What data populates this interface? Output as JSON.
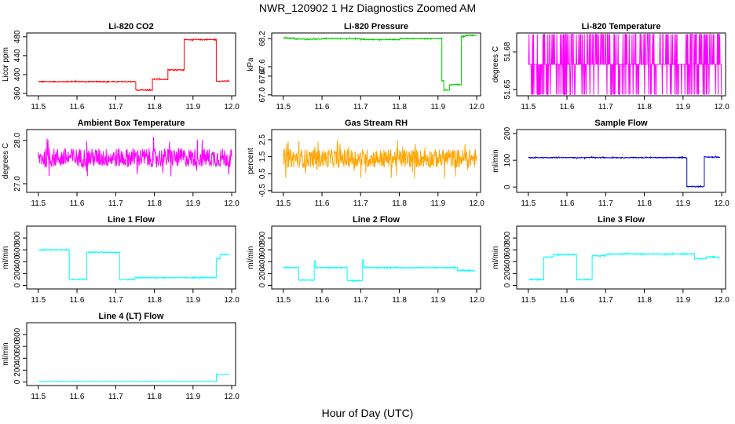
{
  "figure": {
    "title": "NWR_120902  1 Hz Diagnostics Zoomed AM",
    "xlabel": "Hour of Day (UTC)"
  },
  "chart_data": [
    {
      "type": "line",
      "title": "Li-820 CO2",
      "ylabel": "Licor ppm",
      "color": "#ff0000",
      "xlim": [
        11.47,
        12.01
      ],
      "ylim": [
        355,
        488
      ],
      "xticks": [
        "11.5",
        "11.6",
        "11.7",
        "11.8",
        "11.9",
        "12.0"
      ],
      "xtick_values": [
        11.5,
        11.6,
        11.7,
        11.8,
        11.9,
        12.0
      ],
      "yticks": [
        "360",
        "400",
        "440",
        "480"
      ],
      "ytick_values": [
        360,
        400,
        440,
        480
      ],
      "noise": 1.0,
      "segments": [
        [
          11.5,
          11.752,
          385
        ],
        [
          11.752,
          11.795,
          367
        ],
        [
          11.795,
          11.835,
          390
        ],
        [
          11.835,
          11.877,
          410
        ],
        [
          11.877,
          11.96,
          474
        ],
        [
          11.96,
          11.995,
          386
        ]
      ]
    },
    {
      "type": "line",
      "title": "Li-820 Pressure",
      "ylabel": "kPa",
      "color": "#00cc00",
      "xlim": [
        11.47,
        12.01
      ],
      "ylim": [
        66.98,
        68.32
      ],
      "xticks": [
        "11.5",
        "11.6",
        "11.7",
        "11.8",
        "11.9",
        "12.0"
      ],
      "xtick_values": [
        11.5,
        11.6,
        11.7,
        11.8,
        11.9,
        12.0
      ],
      "yticks": [
        "67.0",
        "67.4",
        "67.6",
        "68.2"
      ],
      "ytick_values": [
        67.0,
        67.4,
        67.6,
        68.2
      ],
      "noise": 0.01,
      "segments": [
        [
          11.5,
          11.53,
          68.21
        ],
        [
          11.53,
          11.6,
          68.19
        ],
        [
          11.6,
          11.7,
          68.2
        ],
        [
          11.7,
          11.8,
          68.18
        ],
        [
          11.8,
          11.91,
          68.2
        ],
        [
          11.91,
          11.915,
          67.3
        ],
        [
          11.915,
          11.93,
          67.1
        ],
        [
          11.93,
          11.96,
          67.22
        ],
        [
          11.96,
          11.97,
          68.25
        ],
        [
          11.97,
          12.0,
          68.27
        ]
      ]
    },
    {
      "type": "line",
      "title": "Li-820 Temperature",
      "ylabel": "degrees C",
      "color": "#ff00ff",
      "xlim": [
        11.47,
        12.01
      ],
      "ylim": [
        51.645,
        51.695
      ],
      "xticks": [
        "11.5",
        "11.6",
        "11.7",
        "11.8",
        "11.9",
        "12.0"
      ],
      "xtick_values": [
        11.5,
        11.6,
        11.7,
        11.8,
        11.9,
        12.0
      ],
      "yticks": [
        "51.65",
        "51.68"
      ],
      "ytick_values": [
        51.65,
        51.68
      ],
      "quantized": [
        51.646,
        51.67,
        51.694
      ],
      "segments": [
        [
          11.5,
          12.0,
          51.67
        ]
      ]
    },
    {
      "type": "line",
      "title": "Ambient Box Temperature",
      "ylabel": "degrees C",
      "color": "#ff00ff",
      "xlim": [
        11.47,
        12.01
      ],
      "ylim": [
        26.8,
        28.25
      ],
      "xticks": [
        "11.5",
        "11.6",
        "11.7",
        "11.8",
        "11.9",
        "12.0"
      ],
      "xtick_values": [
        11.5,
        11.6,
        11.7,
        11.8,
        11.9,
        12.0
      ],
      "yticks": [
        "27.0",
        "28.0"
      ],
      "ytick_values": [
        27.0,
        28.0
      ],
      "noise": 0.22,
      "segments": [
        [
          11.5,
          12.0,
          27.6
        ]
      ]
    },
    {
      "type": "line",
      "title": "Gas Stream RH",
      "ylabel": "percent",
      "color": "#ffa500",
      "xlim": [
        11.47,
        12.01
      ],
      "ylim": [
        -0.6,
        3.1
      ],
      "xticks": [
        "11.5",
        "11.6",
        "11.7",
        "11.8",
        "11.9",
        "12.0"
      ],
      "xtick_values": [
        11.5,
        11.6,
        11.7,
        11.8,
        11.9,
        12.0
      ],
      "yticks": [
        "-0.5",
        "0.5",
        "1.5",
        "2.5"
      ],
      "ytick_values": [
        -0.5,
        0.5,
        1.5,
        2.5
      ],
      "noise": 0.55,
      "segments": [
        [
          11.5,
          12.0,
          1.4
        ]
      ]
    },
    {
      "type": "line",
      "title": "Sample Flow",
      "ylabel": "ml/min",
      "color": "#0000cc",
      "xlim": [
        11.47,
        12.01
      ],
      "ylim": [
        -20,
        215
      ],
      "xticks": [
        "11.5",
        "11.6",
        "11.7",
        "11.8",
        "11.9",
        "12.0"
      ],
      "xtick_values": [
        11.5,
        11.6,
        11.7,
        11.8,
        11.9,
        12.0
      ],
      "yticks": [
        "0",
        "100",
        "200"
      ],
      "ytick_values": [
        0,
        100,
        200
      ],
      "noise": 1.5,
      "segments": [
        [
          11.5,
          11.91,
          110
        ],
        [
          11.91,
          11.955,
          2
        ],
        [
          11.955,
          11.995,
          112
        ]
      ]
    },
    {
      "type": "line",
      "title": "Line 1 Flow",
      "ylabel": "ml/min",
      "color": "#00ffff",
      "xlim": [
        11.47,
        12.01
      ],
      "ylim": [
        -60,
        1000
      ],
      "xticks": [
        "11.5",
        "11.6",
        "11.7",
        "11.8",
        "11.9",
        "12.0"
      ],
      "xtick_values": [
        11.5,
        11.6,
        11.7,
        11.8,
        11.9,
        12.0
      ],
      "yticks": [
        "0",
        "200",
        "400",
        "600",
        "800"
      ],
      "ytick_values": [
        0,
        200,
        400,
        600,
        800
      ],
      "noise": 8,
      "segments": [
        [
          11.5,
          11.58,
          600
        ],
        [
          11.58,
          11.625,
          100
        ],
        [
          11.625,
          11.71,
          560
        ],
        [
          11.71,
          11.75,
          100
        ],
        [
          11.75,
          11.96,
          130
        ],
        [
          11.96,
          11.97,
          450
        ],
        [
          11.97,
          11.995,
          520
        ]
      ]
    },
    {
      "type": "line",
      "title": "Line 2 Flow",
      "ylabel": "ml/min",
      "color": "#00ffff",
      "xlim": [
        11.47,
        12.01
      ],
      "ylim": [
        -60,
        1000
      ],
      "xticks": [
        "11.5",
        "11.6",
        "11.7",
        "11.8",
        "11.9",
        "12.0"
      ],
      "xtick_values": [
        11.5,
        11.6,
        11.7,
        11.8,
        11.9,
        12.0
      ],
      "yticks": [
        "0",
        "200",
        "400",
        "600",
        "800"
      ],
      "ytick_values": [
        0,
        200,
        400,
        600,
        800
      ],
      "noise": 8,
      "segments": [
        [
          11.5,
          11.54,
          300
        ],
        [
          11.54,
          11.58,
          90
        ],
        [
          11.58,
          11.583,
          410
        ],
        [
          11.583,
          11.665,
          300
        ],
        [
          11.665,
          11.705,
          80
        ],
        [
          11.705,
          11.708,
          430
        ],
        [
          11.708,
          11.95,
          300
        ],
        [
          11.95,
          11.995,
          250
        ]
      ]
    },
    {
      "type": "line",
      "title": "Line 3 Flow",
      "ylabel": "ml/min",
      "color": "#00ffff",
      "xlim": [
        11.47,
        12.01
      ],
      "ylim": [
        -60,
        1000
      ],
      "xticks": [
        "11.5",
        "11.6",
        "11.7",
        "11.8",
        "11.9",
        "12.0"
      ],
      "xtick_values": [
        11.5,
        11.6,
        11.7,
        11.8,
        11.9,
        12.0
      ],
      "yticks": [
        "0",
        "200",
        "400",
        "600",
        "800"
      ],
      "ytick_values": [
        0,
        200,
        400,
        600,
        800
      ],
      "noise": 8,
      "segments": [
        [
          11.5,
          11.54,
          100
        ],
        [
          11.54,
          11.565,
          480
        ],
        [
          11.565,
          11.625,
          520
        ],
        [
          11.625,
          11.665,
          100
        ],
        [
          11.665,
          11.7,
          500
        ],
        [
          11.7,
          11.93,
          530
        ],
        [
          11.93,
          11.96,
          450
        ],
        [
          11.96,
          11.995,
          480
        ]
      ]
    },
    {
      "type": "line",
      "title": "Line 4 (LT) Flow",
      "ylabel": "ml/min",
      "color": "#00ffff",
      "xlim": [
        11.47,
        12.01
      ],
      "ylim": [
        -60,
        1000
      ],
      "xticks": [
        "11.5",
        "11.6",
        "11.7",
        "11.8",
        "11.9",
        "12.0"
      ],
      "xtick_values": [
        11.5,
        11.6,
        11.7,
        11.8,
        11.9,
        12.0
      ],
      "yticks": [
        "0",
        "200",
        "400",
        "600",
        "800"
      ],
      "ytick_values": [
        0,
        200,
        400,
        600,
        800
      ],
      "noise": 1.5,
      "segments": [
        [
          11.5,
          11.96,
          8
        ],
        [
          11.96,
          11.995,
          130
        ]
      ]
    }
  ]
}
